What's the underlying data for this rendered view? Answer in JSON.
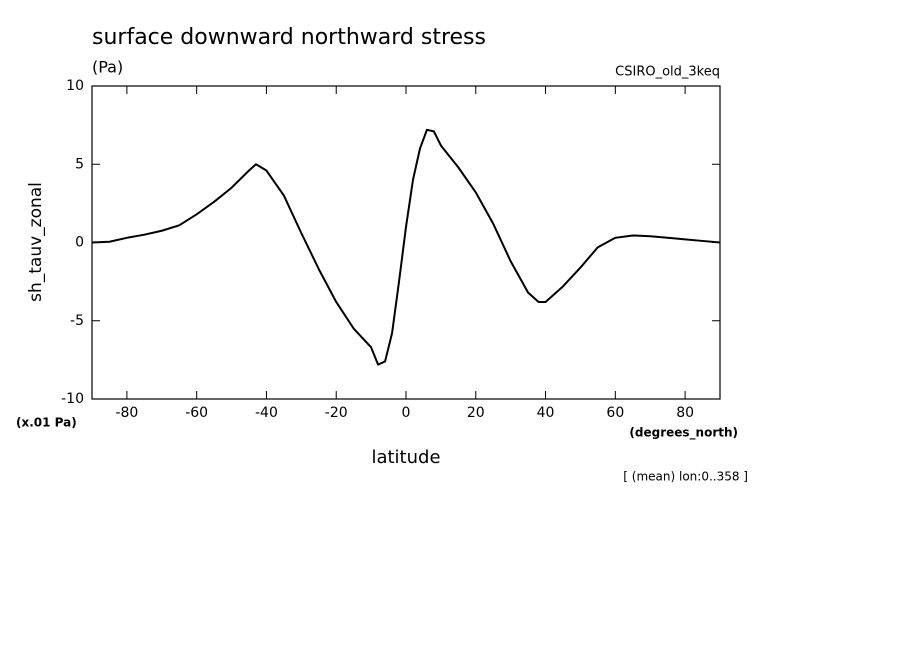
{
  "chart_data": {
    "type": "line",
    "title": "surface downward northward stress",
    "units": "(Pa)",
    "model": "CSIRO_old_3keq",
    "ylabel": "sh_tauv_zonal",
    "yscale_note": "(x.01 Pa)",
    "xunits": "(degrees_north)",
    "xlabel": "latitude",
    "note": "[ (mean) lon:0..358 ]",
    "x": [
      -90,
      -85,
      -80,
      -75,
      -70,
      -65,
      -60,
      -55,
      -50,
      -45,
      -43,
      -40,
      -35,
      -30,
      -25,
      -20,
      -15,
      -10,
      -8,
      -6,
      -4,
      -2,
      0,
      2,
      4,
      6,
      8,
      10,
      15,
      20,
      25,
      30,
      35,
      38,
      40,
      45,
      50,
      55,
      60,
      65,
      70,
      75,
      80,
      85,
      90
    ],
    "series": [
      {
        "name": "sh_tauv_zonal",
        "color": "#000000",
        "values": [
          0,
          0.05,
          0.3,
          0.5,
          0.75,
          1.1,
          1.8,
          2.6,
          3.5,
          4.6,
          5.0,
          4.6,
          3.0,
          0.6,
          -1.7,
          -3.8,
          -5.5,
          -6.7,
          -7.8,
          -7.6,
          -5.8,
          -2.5,
          1.0,
          4.0,
          6.0,
          7.2,
          7.1,
          6.2,
          4.8,
          3.2,
          1.2,
          -1.2,
          -3.2,
          -3.8,
          -3.8,
          -2.8,
          -1.6,
          -0.3,
          0.3,
          0.45,
          0.4,
          0.3,
          0.2,
          0.1,
          0
        ]
      }
    ],
    "xlim": [
      -90,
      90
    ],
    "xticks": [
      -80,
      -60,
      -40,
      -20,
      0,
      20,
      40,
      60,
      80
    ],
    "ylim": [
      -10,
      10
    ],
    "yticks": [
      -10,
      -5,
      0,
      5,
      10
    ]
  }
}
